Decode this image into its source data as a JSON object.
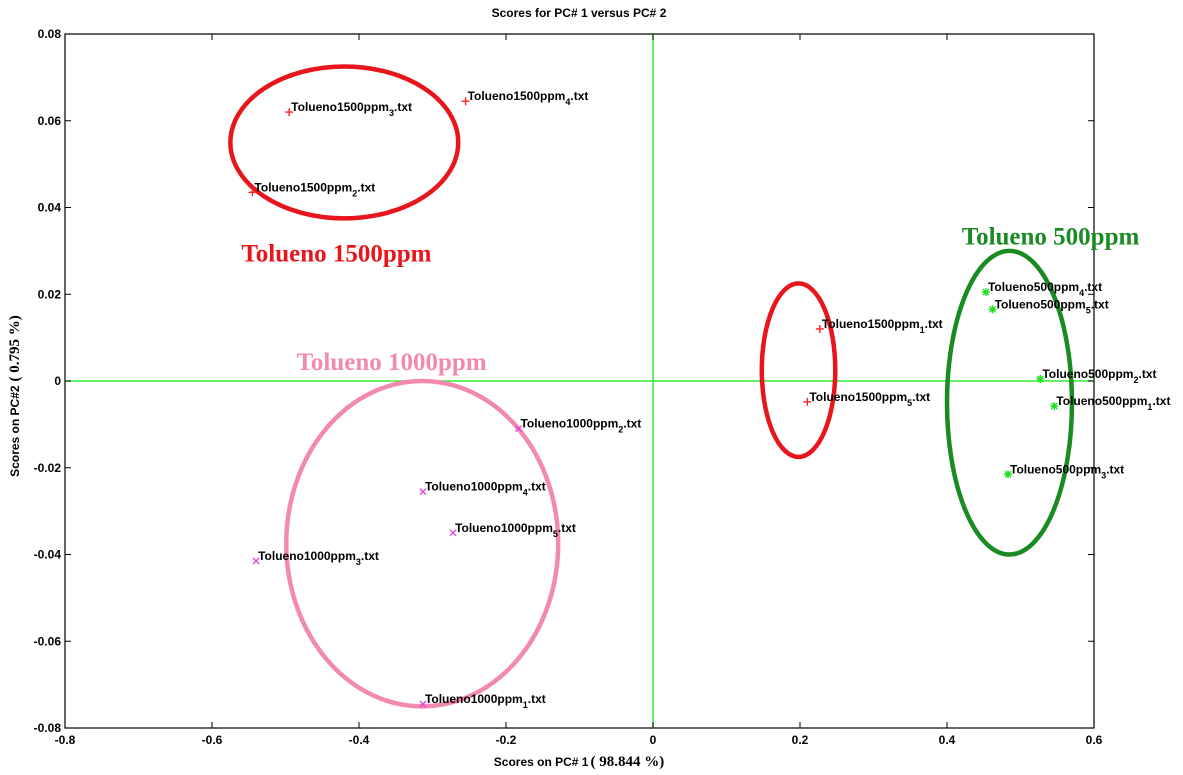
{
  "chart_data": {
    "type": "scatter",
    "title": "Scores for PC# 1 versus PC# 2",
    "xlabel": {
      "main": "Scores on PC# 1",
      "pct": "( 98.844 %)"
    },
    "ylabel": {
      "main": "Scores on PC#2",
      "pct": "( 0.795 %)"
    },
    "xlim": [
      -0.8,
      0.6
    ],
    "ylim": [
      -0.08,
      0.08
    ],
    "xticks": [
      -0.8,
      -0.6,
      -0.4,
      -0.2,
      0,
      0.2,
      0.4,
      0.6
    ],
    "yticks": [
      -0.08,
      -0.06,
      -0.04,
      -0.02,
      0,
      0.02,
      0.04,
      0.06,
      0.08
    ],
    "xtick_labels": [
      "-0.8",
      "-0.6",
      "-0.4",
      "-0.2",
      "0",
      "0.2",
      "0.4",
      "0.6"
    ],
    "ytick_labels": [
      "-0.08",
      "-0.06",
      "-0.04",
      "-0.02",
      "0",
      "0.02",
      "0.04",
      "0.06",
      "0.08"
    ],
    "grid": false,
    "zero_lines_color": "#33ee33",
    "points": [
      {
        "x": -0.495,
        "y": 0.062,
        "base": "Tolueno1500ppm",
        "sub": "3",
        "ext": ".txt",
        "marker": "+",
        "color": "#ff2020"
      },
      {
        "x": -0.255,
        "y": 0.0645,
        "base": "Tolueno1500ppm",
        "sub": "4",
        "ext": ".txt",
        "marker": "+",
        "color": "#ff2020"
      },
      {
        "x": -0.545,
        "y": 0.0435,
        "base": "Tolueno1500ppm",
        "sub": "2",
        "ext": ".txt",
        "marker": "+",
        "color": "#ff2020"
      },
      {
        "x": 0.227,
        "y": 0.012,
        "base": "Tolueno1500ppm",
        "sub": "1",
        "ext": ".txt",
        "marker": "+",
        "color": "#ff2020"
      },
      {
        "x": 0.21,
        "y": -0.0048,
        "base": "Tolueno1500ppm",
        "sub": "5",
        "ext": ".txt",
        "marker": "+",
        "color": "#ff2020"
      },
      {
        "x": -0.183,
        "y": -0.011,
        "base": "Tolueno1000ppm",
        "sub": "2",
        "ext": ".txt",
        "marker": "x",
        "color": "#e040e0"
      },
      {
        "x": -0.313,
        "y": -0.0255,
        "base": "Tolueno1000ppm",
        "sub": "4",
        "ext": ".txt",
        "marker": "x",
        "color": "#e040e0"
      },
      {
        "x": -0.272,
        "y": -0.035,
        "base": "Tolueno1000ppm",
        "sub": "5",
        "ext": ".txt",
        "marker": "x",
        "color": "#e040e0"
      },
      {
        "x": -0.54,
        "y": -0.0415,
        "base": "Tolueno1000ppm",
        "sub": "3",
        "ext": ".txt",
        "marker": "x",
        "color": "#e040e0"
      },
      {
        "x": -0.313,
        "y": -0.0745,
        "base": "Tolueno1000ppm",
        "sub": "1",
        "ext": ".txt",
        "marker": "x",
        "color": "#e040e0"
      },
      {
        "x": 0.453,
        "y": 0.0205,
        "base": "Tolueno500ppm",
        "sub": "4",
        "ext": ".txt",
        "marker": "*",
        "color": "#22dd22"
      },
      {
        "x": 0.462,
        "y": 0.0165,
        "base": "Tolueno500ppm",
        "sub": "5",
        "ext": ".txt",
        "marker": "*",
        "color": "#22dd22"
      },
      {
        "x": 0.527,
        "y": 0.0005,
        "base": "Tolueno500ppm",
        "sub": "2",
        "ext": ".txt",
        "marker": "*",
        "color": "#22dd22"
      },
      {
        "x": 0.546,
        "y": -0.0058,
        "base": "Tolueno500ppm",
        "sub": "1",
        "ext": ".txt",
        "marker": "*",
        "color": "#22dd22"
      },
      {
        "x": 0.483,
        "y": -0.0215,
        "base": "Tolueno500ppm",
        "sub": "3",
        "ext": ".txt",
        "marker": "*",
        "color": "#22dd22"
      }
    ],
    "group_ellipses": [
      {
        "cx": -0.42,
        "cy": 0.055,
        "rx": 0.155,
        "ry": 0.0175,
        "color": "#e8161c"
      },
      {
        "cx": 0.198,
        "cy": 0.0025,
        "rx": 0.05,
        "ry": 0.02,
        "color": "#e8161c"
      },
      {
        "cx": -0.314,
        "cy": -0.0375,
        "rx": 0.185,
        "ry": 0.0375,
        "color": "#f28aae"
      },
      {
        "cx": 0.485,
        "cy": -0.005,
        "rx": 0.085,
        "ry": 0.035,
        "color": "#1a8a22"
      }
    ],
    "group_labels": [
      {
        "text": "Tolueno 1500ppm",
        "x": -0.56,
        "y": 0.0275,
        "color": "#e8161c"
      },
      {
        "text": "Tolueno 1000ppm",
        "x": -0.485,
        "y": 0.0025,
        "color": "#f28aae"
      },
      {
        "text": "Tolueno 500ppm",
        "x": 0.42,
        "y": 0.0315,
        "color": "#1a8a22"
      }
    ]
  }
}
